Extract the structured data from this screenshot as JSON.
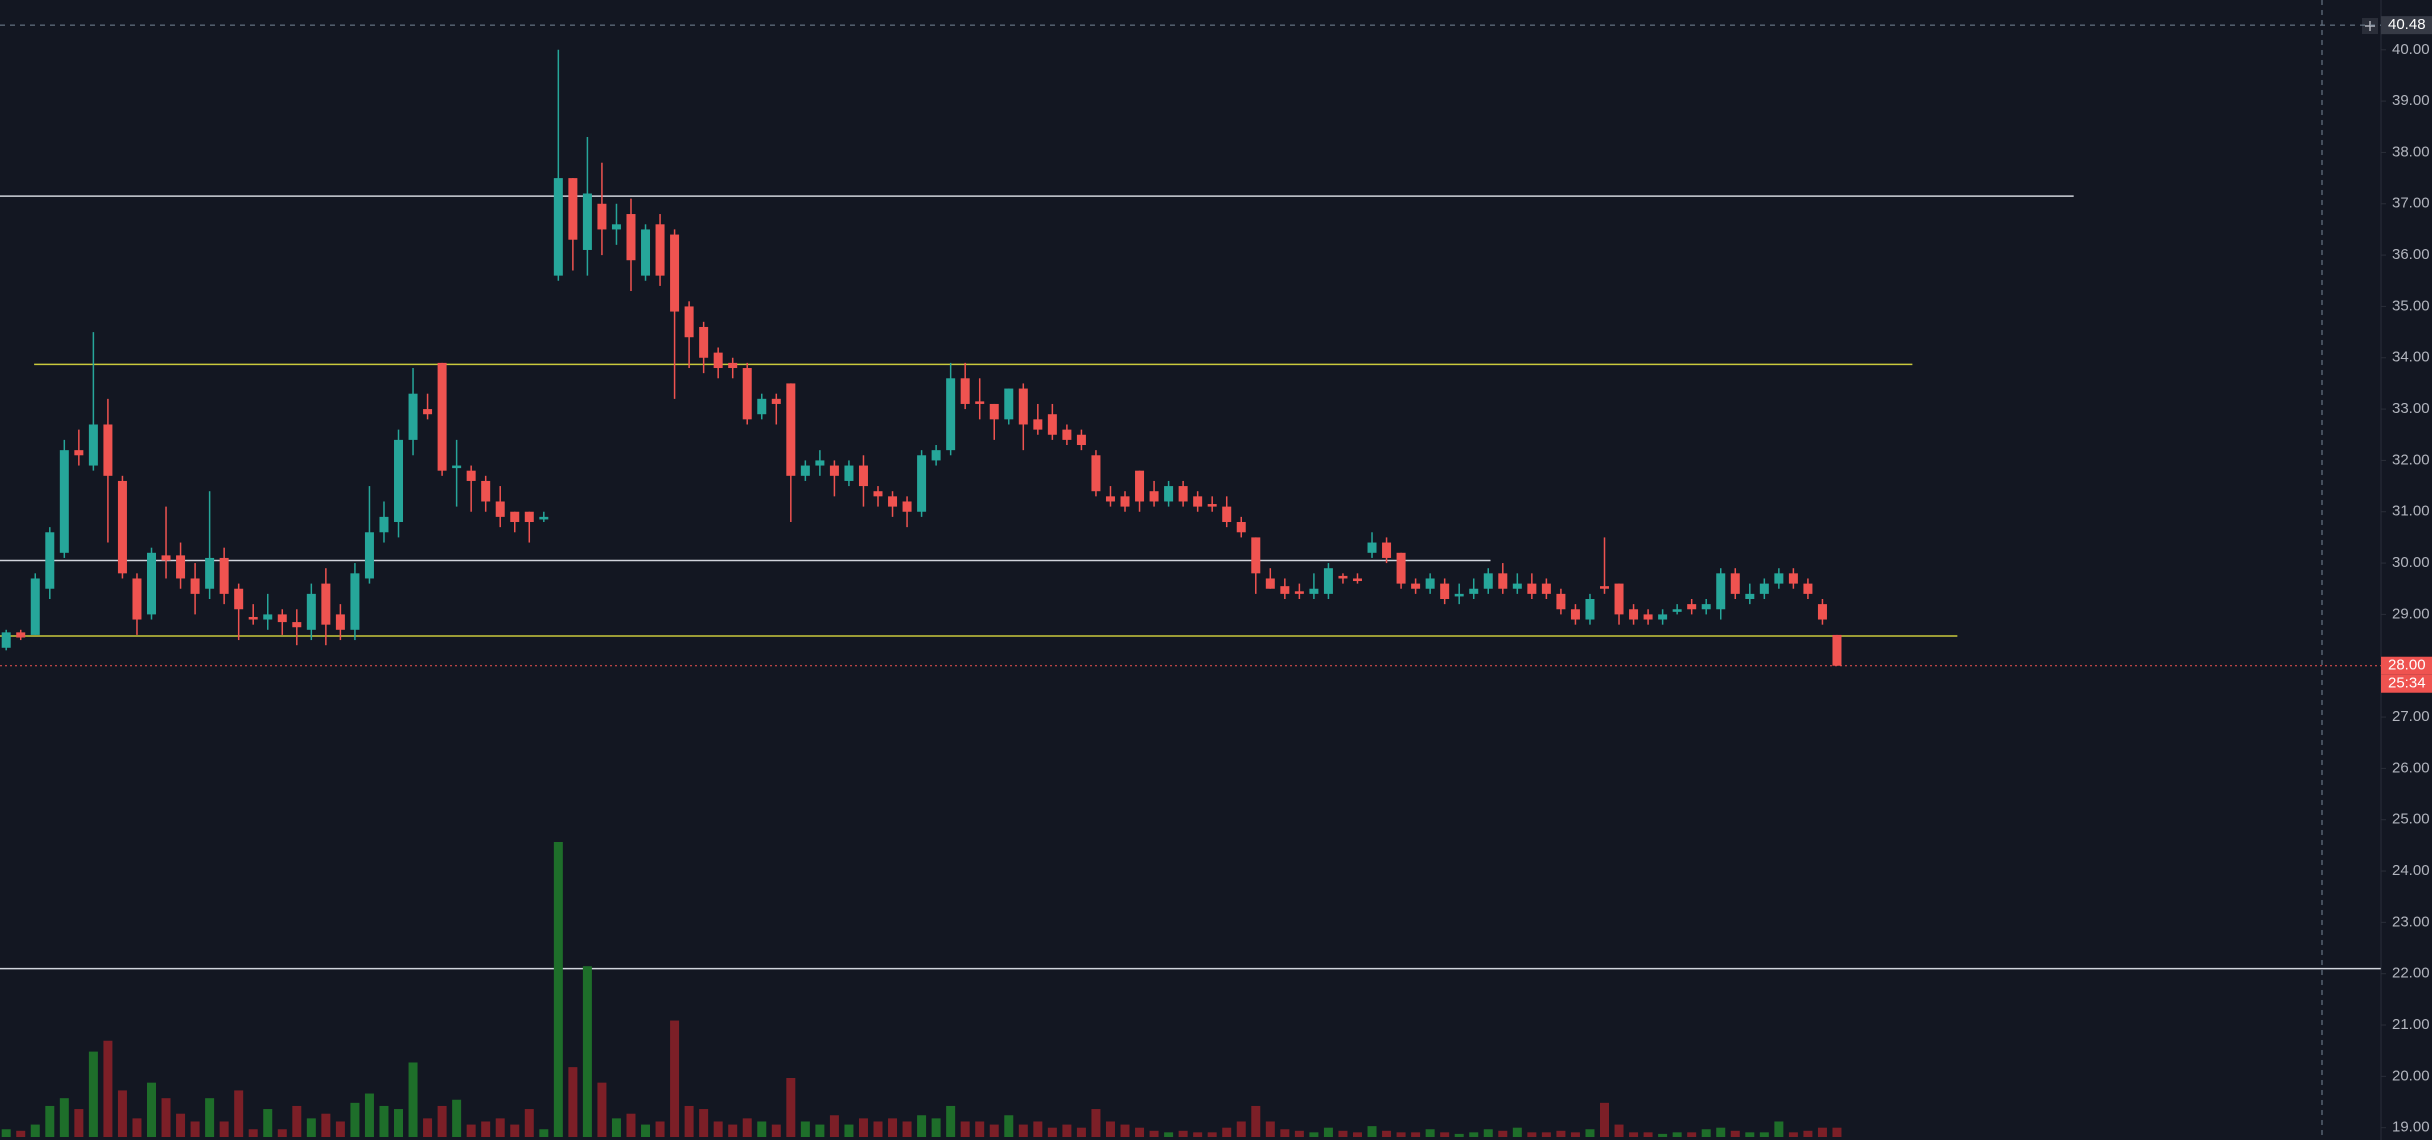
{
  "chart_data": {
    "type": "candlestick",
    "up_color": "#26a69a",
    "down_color": "#ef5350",
    "volume_up_color": "#1e6e2a",
    "volume_down_color": "#7c1f27",
    "background": "#131722",
    "open": [
      28.35,
      28.65,
      28.6,
      29.5,
      30.2,
      32.2,
      31.9,
      32.7,
      31.6,
      29.7,
      29.0,
      30.15,
      30.15,
      29.7,
      29.5,
      30.1,
      29.5,
      28.95,
      28.9,
      29.0,
      28.85,
      28.7,
      29.6,
      29.0,
      28.7,
      29.7,
      30.6,
      30.8,
      32.4,
      33.0,
      33.9,
      31.85,
      31.8,
      31.6,
      31.2,
      31.0,
      31.0,
      30.85,
      35.6,
      37.5,
      36.1,
      37.0,
      36.5,
      36.8,
      35.6,
      36.6,
      36.4,
      35.0,
      34.6,
      34.1,
      33.9,
      33.8,
      32.9,
      33.2,
      33.5,
      31.7,
      31.9,
      31.9,
      31.6,
      31.9,
      31.4,
      31.3,
      31.2,
      31.0,
      32.0,
      32.2,
      33.6,
      33.15,
      33.1,
      32.8,
      33.4,
      32.8,
      32.9,
      32.6,
      32.5,
      32.1,
      31.3,
      31.3,
      31.8,
      31.4,
      31.2,
      31.5,
      31.3,
      31.15,
      31.1,
      30.8,
      30.5,
      29.7,
      29.55,
      29.45,
      29.4,
      29.4,
      29.75,
      29.7,
      30.2,
      30.4,
      30.2,
      29.6,
      29.5,
      29.6,
      29.35,
      29.4,
      29.5,
      29.8,
      29.5,
      29.6,
      29.6,
      29.4,
      29.1,
      28.9,
      29.55,
      29.6,
      29.1,
      29.0,
      28.9,
      29.05,
      29.2,
      29.1,
      29.1,
      29.8,
      29.3,
      29.4,
      29.6,
      29.8,
      29.6,
      29.2,
      28.6
    ],
    "high": [
      28.7,
      28.7,
      29.8,
      30.7,
      32.4,
      32.6,
      34.5,
      33.2,
      31.7,
      29.8,
      30.3,
      31.1,
      30.4,
      30.0,
      31.4,
      30.3,
      29.6,
      29.2,
      29.4,
      29.1,
      29.1,
      29.6,
      29.9,
      29.2,
      30.0,
      31.5,
      31.2,
      32.6,
      33.8,
      33.3,
      33.9,
      32.4,
      31.9,
      31.7,
      31.5,
      31.0,
      31.0,
      31.0,
      40.0,
      37.5,
      38.3,
      37.8,
      37.0,
      37.1,
      36.6,
      36.8,
      36.5,
      35.1,
      34.7,
      34.2,
      34.0,
      33.9,
      33.3,
      33.3,
      33.5,
      32.0,
      32.2,
      32.0,
      32.0,
      32.1,
      31.5,
      31.4,
      31.3,
      32.2,
      32.3,
      33.9,
      33.9,
      33.6,
      33.1,
      33.4,
      33.5,
      33.1,
      33.1,
      32.7,
      32.6,
      32.2,
      31.5,
      31.4,
      31.8,
      31.6,
      31.6,
      31.6,
      31.4,
      31.3,
      31.3,
      30.9,
      30.5,
      29.9,
      29.7,
      29.6,
      29.8,
      30.0,
      29.8,
      29.8,
      30.6,
      30.5,
      30.2,
      29.7,
      29.8,
      29.7,
      29.6,
      29.7,
      29.9,
      30.0,
      29.8,
      29.8,
      29.7,
      29.5,
      29.2,
      29.4,
      30.5,
      29.6,
      29.2,
      29.1,
      29.1,
      29.2,
      29.3,
      29.3,
      29.9,
      29.9,
      29.6,
      29.7,
      29.9,
      29.9,
      29.7,
      29.3,
      28.6
    ],
    "low": [
      28.3,
      28.5,
      28.6,
      29.3,
      30.1,
      31.9,
      31.8,
      30.4,
      29.7,
      28.6,
      28.9,
      29.7,
      29.5,
      29.0,
      29.3,
      29.2,
      28.5,
      28.8,
      28.7,
      28.6,
      28.4,
      28.5,
      28.4,
      28.5,
      28.5,
      29.6,
      30.4,
      30.5,
      32.1,
      32.8,
      31.7,
      31.1,
      31.0,
      31.0,
      30.7,
      30.6,
      30.4,
      30.8,
      35.5,
      35.7,
      35.6,
      36.0,
      36.2,
      35.3,
      35.5,
      35.4,
      33.2,
      33.8,
      33.7,
      33.6,
      33.6,
      32.7,
      32.8,
      32.7,
      30.8,
      31.6,
      31.7,
      31.3,
      31.5,
      31.1,
      31.1,
      30.9,
      30.7,
      30.9,
      31.9,
      32.1,
      33.0,
      32.8,
      32.4,
      32.7,
      32.2,
      32.5,
      32.4,
      32.3,
      32.2,
      31.3,
      31.1,
      31.0,
      31.0,
      31.1,
      31.1,
      31.1,
      31.0,
      31.0,
      30.7,
      30.5,
      29.4,
      29.5,
      29.3,
      29.3,
      29.3,
      29.3,
      29.6,
      29.6,
      30.1,
      30.0,
      29.5,
      29.4,
      29.4,
      29.2,
      29.2,
      29.3,
      29.4,
      29.4,
      29.4,
      29.3,
      29.3,
      29.0,
      28.8,
      28.8,
      29.4,
      28.8,
      28.8,
      28.8,
      28.8,
      29.0,
      29.0,
      29.0,
      28.9,
      29.3,
      29.2,
      29.3,
      29.5,
      29.5,
      29.3,
      28.8,
      28.0
    ],
    "close": [
      28.65,
      28.55,
      29.7,
      30.6,
      32.2,
      32.1,
      32.7,
      31.7,
      29.8,
      28.9,
      30.2,
      30.05,
      29.7,
      29.4,
      30.1,
      29.4,
      29.1,
      28.9,
      29.0,
      28.85,
      28.75,
      29.4,
      28.8,
      28.7,
      29.8,
      30.6,
      30.9,
      32.4,
      33.3,
      32.9,
      31.8,
      31.9,
      31.6,
      31.2,
      30.9,
      30.8,
      30.8,
      30.9,
      37.5,
      36.3,
      37.2,
      36.5,
      36.6,
      35.9,
      36.5,
      35.6,
      34.9,
      34.4,
      34.0,
      33.8,
      33.8,
      32.8,
      33.2,
      33.1,
      31.7,
      31.9,
      32.0,
      31.7,
      31.9,
      31.5,
      31.3,
      31.1,
      31.0,
      32.1,
      32.2,
      33.6,
      33.1,
      33.1,
      32.8,
      33.4,
      32.7,
      32.6,
      32.5,
      32.4,
      32.3,
      31.4,
      31.2,
      31.1,
      31.2,
      31.2,
      31.5,
      31.2,
      31.1,
      31.1,
      30.8,
      30.6,
      29.8,
      29.5,
      29.4,
      29.4,
      29.5,
      29.9,
      29.7,
      29.65,
      30.4,
      30.1,
      29.6,
      29.5,
      29.7,
      29.3,
      29.4,
      29.5,
      29.8,
      29.5,
      29.6,
      29.4,
      29.4,
      29.1,
      28.9,
      29.3,
      29.5,
      29.0,
      28.9,
      28.9,
      29.0,
      29.1,
      29.1,
      29.2,
      29.8,
      29.4,
      29.4,
      29.6,
      29.8,
      29.6,
      29.4,
      28.9,
      28.0
    ],
    "volume": [
      5,
      4,
      8,
      20,
      25,
      18,
      55,
      62,
      30,
      12,
      35,
      25,
      15,
      10,
      25,
      10,
      30,
      5,
      18,
      5,
      20,
      12,
      15,
      10,
      22,
      28,
      20,
      18,
      48,
      12,
      20,
      24,
      8,
      10,
      12,
      8,
      18,
      5,
      190,
      45,
      110,
      35,
      12,
      15,
      8,
      10,
      75,
      20,
      18,
      10,
      8,
      12,
      10,
      8,
      38,
      10,
      8,
      14,
      8,
      12,
      10,
      12,
      10,
      14,
      12,
      20,
      10,
      10,
      8,
      14,
      8,
      10,
      6,
      8,
      6,
      18,
      10,
      8,
      6,
      4,
      3,
      4,
      3,
      3,
      6,
      10,
      20,
      10,
      5,
      4,
      3,
      6,
      4,
      3,
      7,
      4,
      3,
      3,
      5,
      3,
      2,
      3,
      5,
      4,
      6,
      3,
      3,
      4,
      3,
      5,
      22,
      8,
      3,
      3,
      2,
      3,
      3,
      5,
      6,
      4,
      3,
      3,
      10,
      3,
      4,
      6,
      6
    ],
    "ylim": [
      18.76,
      40.97
    ],
    "yticks": [
      {
        "value": 19,
        "label": "19.00"
      },
      {
        "value": 20,
        "label": "20.00"
      },
      {
        "value": 21,
        "label": "21.00"
      },
      {
        "value": 22,
        "label": "22.00"
      },
      {
        "value": 23,
        "label": "23.00"
      },
      {
        "value": 24,
        "label": "24.00"
      },
      {
        "value": 25,
        "label": "25.00"
      },
      {
        "value": 26,
        "label": "26.00"
      },
      {
        "value": 27,
        "label": "27.00"
      },
      {
        "value": 28,
        "label": "28.00"
      },
      {
        "value": 29,
        "label": "29.00"
      },
      {
        "value": 30,
        "label": "30.00"
      },
      {
        "value": 31,
        "label": "31.00"
      },
      {
        "value": 32,
        "label": "32.00"
      },
      {
        "value": 33,
        "label": "33.00"
      },
      {
        "value": 34,
        "label": "34.00"
      },
      {
        "value": 35,
        "label": "35.00"
      },
      {
        "value": 36,
        "label": "36.00"
      },
      {
        "value": 37,
        "label": "37.00"
      },
      {
        "value": 38,
        "label": "38.00"
      },
      {
        "value": 39,
        "label": "39.00"
      },
      {
        "value": 40,
        "label": "40.00"
      }
    ],
    "levels": [
      {
        "value": 37.15,
        "color": "#d1d4dc"
      },
      {
        "value": 33.87,
        "color": "#c9c93c"
      },
      {
        "value": 30.05,
        "color": "#d1d4dc"
      },
      {
        "value": 28.58,
        "color": "#c9c93c"
      },
      {
        "value": 22.1,
        "color": "#d1d4dc"
      }
    ],
    "crosshair": {
      "value": 40.48,
      "label": "40.48"
    },
    "last_price": {
      "value": 28,
      "label": "28.00",
      "countdown": "25:34",
      "color": "#ef5350"
    }
  }
}
